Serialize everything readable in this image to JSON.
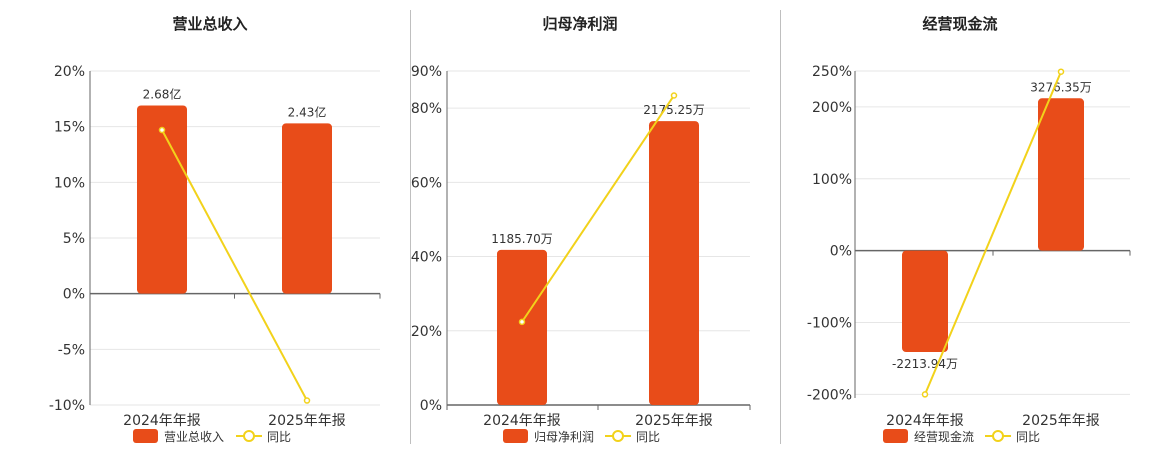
{
  "legend_line_label": "同比",
  "colors": {
    "bar": "#e84c19",
    "line": "#f2d21b",
    "grid": "#e6e6e6",
    "axis": "#666666",
    "divider": "#bfbfbf"
  },
  "chart_data": [
    {
      "type": "bar",
      "title": "营业总收入",
      "categories": [
        "2024年年报",
        "2025年年报"
      ],
      "series": [
        {
          "name": "营业总收入",
          "kind": "bar",
          "values": [
            16.9,
            15.3
          ],
          "labels": [
            "2.68亿",
            "2.43亿"
          ]
        },
        {
          "name": "同比",
          "kind": "line",
          "values": [
            14.7,
            -9.6
          ]
        }
      ],
      "y_ticks": [
        20,
        15,
        10,
        5,
        0,
        -5,
        -10
      ],
      "y_tick_labels": [
        "20%",
        "15%",
        "10%",
        "5%",
        "0%",
        "-5%",
        "-10%"
      ],
      "ylim": [
        -10,
        20
      ],
      "grid": true,
      "legend": "bottom"
    },
    {
      "type": "bar",
      "title": "归母净利润",
      "categories": [
        "2024年年报",
        "2025年年报"
      ],
      "series": [
        {
          "name": "归母净利润",
          "kind": "bar",
          "values": [
            41.8,
            76.5
          ],
          "labels": [
            "1185.70万",
            "2175.25万"
          ]
        },
        {
          "name": "同比",
          "kind": "line",
          "values": [
            22.4,
            83.4
          ]
        }
      ],
      "y_ticks": [
        90,
        80,
        60,
        40,
        20,
        0
      ],
      "y_tick_labels": [
        "90%",
        "80%",
        "60%",
        "40%",
        "20%",
        "0%"
      ],
      "ylim": [
        0,
        90
      ],
      "grid": true,
      "legend": "bottom"
    },
    {
      "type": "bar",
      "title": "经营现金流",
      "categories": [
        "2024年年报",
        "2025年年报"
      ],
      "series": [
        {
          "name": "经营现金流",
          "kind": "bar",
          "values": [
            -141,
            212
          ],
          "labels": [
            "-2213.94万",
            "3276.35万"
          ]
        },
        {
          "name": "同比",
          "kind": "line",
          "values": [
            -200,
            249
          ]
        }
      ],
      "y_ticks": [
        250,
        200,
        100,
        0,
        -100,
        -200
      ],
      "y_tick_labels": [
        "250%",
        "200%",
        "100%",
        "0%",
        "-100%",
        "-200%"
      ],
      "ylim": [
        -205,
        250
      ],
      "grid": true,
      "legend": "bottom"
    }
  ]
}
